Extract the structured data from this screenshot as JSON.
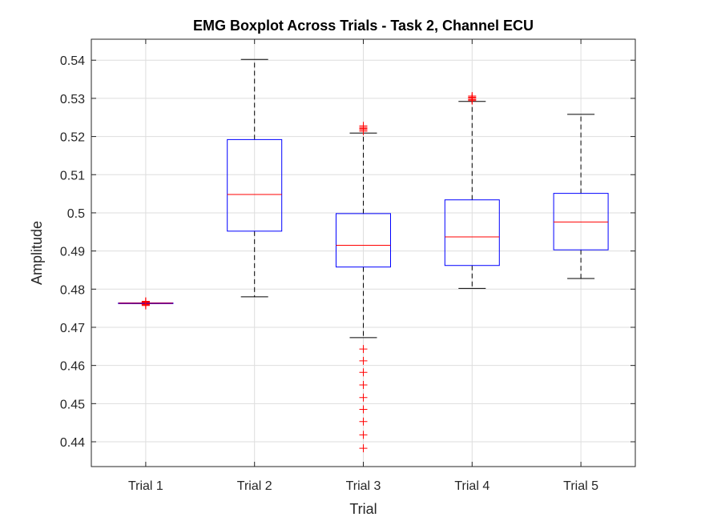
{
  "chart_data": {
    "type": "box",
    "title": "EMG Boxplot Across Trials - Task 2, Channel ECU",
    "xlabel": "Trial",
    "ylabel": "Amplitude",
    "ylim": [
      0.4335,
      0.5455
    ],
    "yticks": [
      0.44,
      0.45,
      0.46,
      0.47,
      0.48,
      0.49,
      0.5,
      0.51,
      0.52,
      0.53,
      0.54
    ],
    "ytick_labels": [
      "0.44",
      "0.45",
      "0.46",
      "0.47",
      "0.48",
      "0.49",
      "0.5",
      "0.51",
      "0.52",
      "0.53",
      "0.54"
    ],
    "grid": true,
    "categories": [
      "Trial 1",
      "Trial 2",
      "Trial 3",
      "Trial 4",
      "Trial 5"
    ],
    "boxes": [
      {
        "label": "Trial 1",
        "whisker_low": 0.4762,
        "q1": 0.4762,
        "median": 0.4763,
        "q3": 0.4764,
        "whisker_high": 0.4764,
        "outliers": [
          0.4757,
          0.4759,
          0.476,
          0.4766,
          0.4767,
          0.4768
        ]
      },
      {
        "label": "Trial 2",
        "whisker_low": 0.478,
        "q1": 0.4952,
        "median": 0.5048,
        "q3": 0.5192,
        "whisker_high": 0.5402,
        "outliers": []
      },
      {
        "label": "Trial 3",
        "whisker_low": 0.4673,
        "q1": 0.4858,
        "median": 0.4915,
        "q3": 0.4998,
        "whisker_high": 0.5209,
        "outliers": [
          0.4383,
          0.4418,
          0.4453,
          0.4485,
          0.4516,
          0.4549,
          0.4582,
          0.4612,
          0.4643,
          0.5214,
          0.5218,
          0.5221,
          0.5224,
          0.5228
        ]
      },
      {
        "label": "Trial 4",
        "whisker_low": 0.4802,
        "q1": 0.4862,
        "median": 0.4937,
        "q3": 0.5034,
        "whisker_high": 0.5292,
        "outliers": [
          0.5294,
          0.5297,
          0.53,
          0.5303,
          0.5306
        ]
      },
      {
        "label": "Trial 5",
        "whisker_low": 0.4828,
        "q1": 0.4903,
        "median": 0.4976,
        "q3": 0.5051,
        "whisker_high": 0.5258,
        "outliers": []
      }
    ],
    "colors": {
      "box": "#0000ff",
      "median": "#ff0000",
      "whisker": "#000000",
      "outlier": "#ff0000",
      "grid": "#dedede",
      "axis": "#262626"
    }
  }
}
